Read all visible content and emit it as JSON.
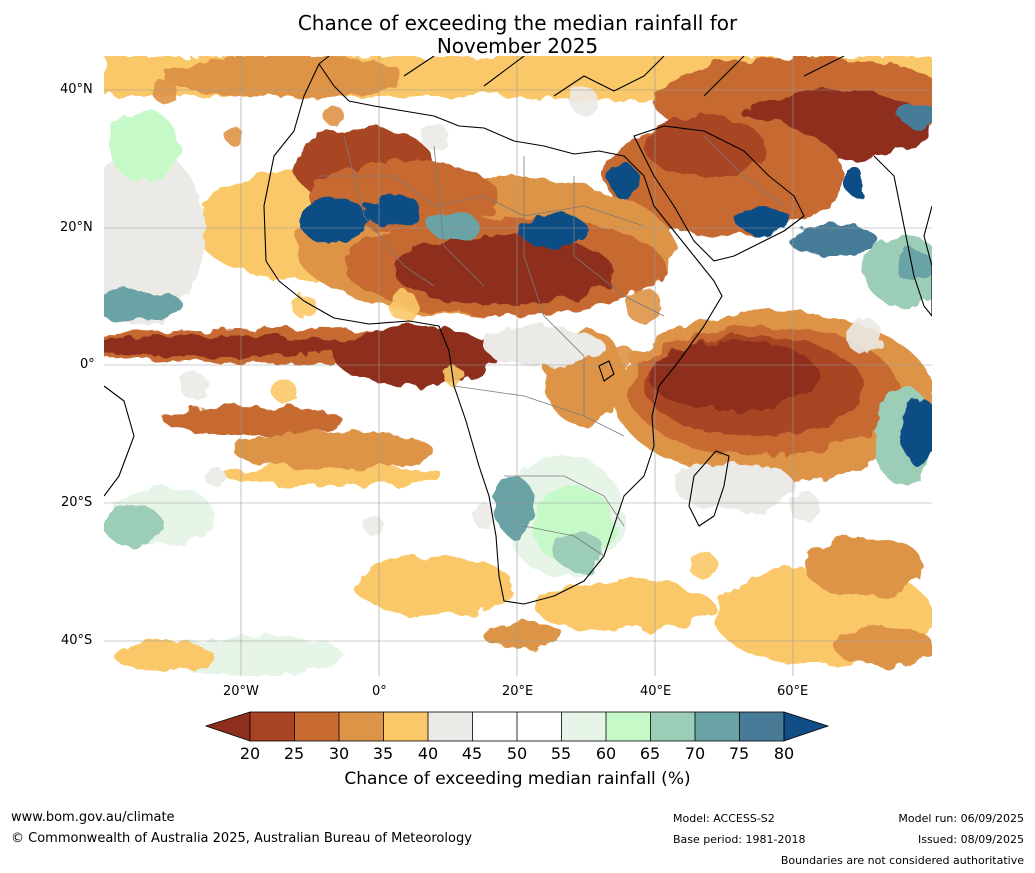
{
  "title": {
    "line1": "Chance of exceeding the median rainfall for",
    "line2": "November 2025"
  },
  "colors": {
    "below20": "#8e2f1d",
    "20-25": "#a84423",
    "25-30": "#c76b33",
    "30-35": "#de9447",
    "35-40": "#fbc869",
    "40-45": "#eceae6",
    "45-50": "#ffffff",
    "50-55": "#ffffff",
    "55-60": "#e6f5e8",
    "60-65": "#c6f9c8",
    "65-70": "#9ccdb7",
    "70-75": "#6aa3a5",
    "75-80": "#477b98",
    "above80": "#114e85",
    "coast": "#000000",
    "borders": "#7a7a7a",
    "grid": "#999999"
  },
  "axes": {
    "lat_labels": [
      "40°N",
      "20°N",
      "0°",
      "20°S",
      "40°S"
    ],
    "lon_labels": [
      "20°W",
      "0°",
      "20°E",
      "40°E",
      "60°E"
    ]
  },
  "colorbar": {
    "ticks": [
      "20",
      "25",
      "30",
      "35",
      "40",
      "45",
      "50",
      "55",
      "60",
      "65",
      "70",
      "75",
      "80"
    ],
    "title": "Chance of exceeding median rainfall (%)"
  },
  "footer": {
    "url": "www.bom.gov.au/climate",
    "copyright": "© Commonwealth of Australia 2025, Australian Bureau of Meteorology",
    "model": "Model: ACCESS-S2",
    "base_period": "Base period: 1981-2018",
    "model_run": "Model run: 06/09/2025",
    "issued": "Issued: 08/09/2025",
    "disclaimer": "Boundaries are not considered authoritative"
  }
}
